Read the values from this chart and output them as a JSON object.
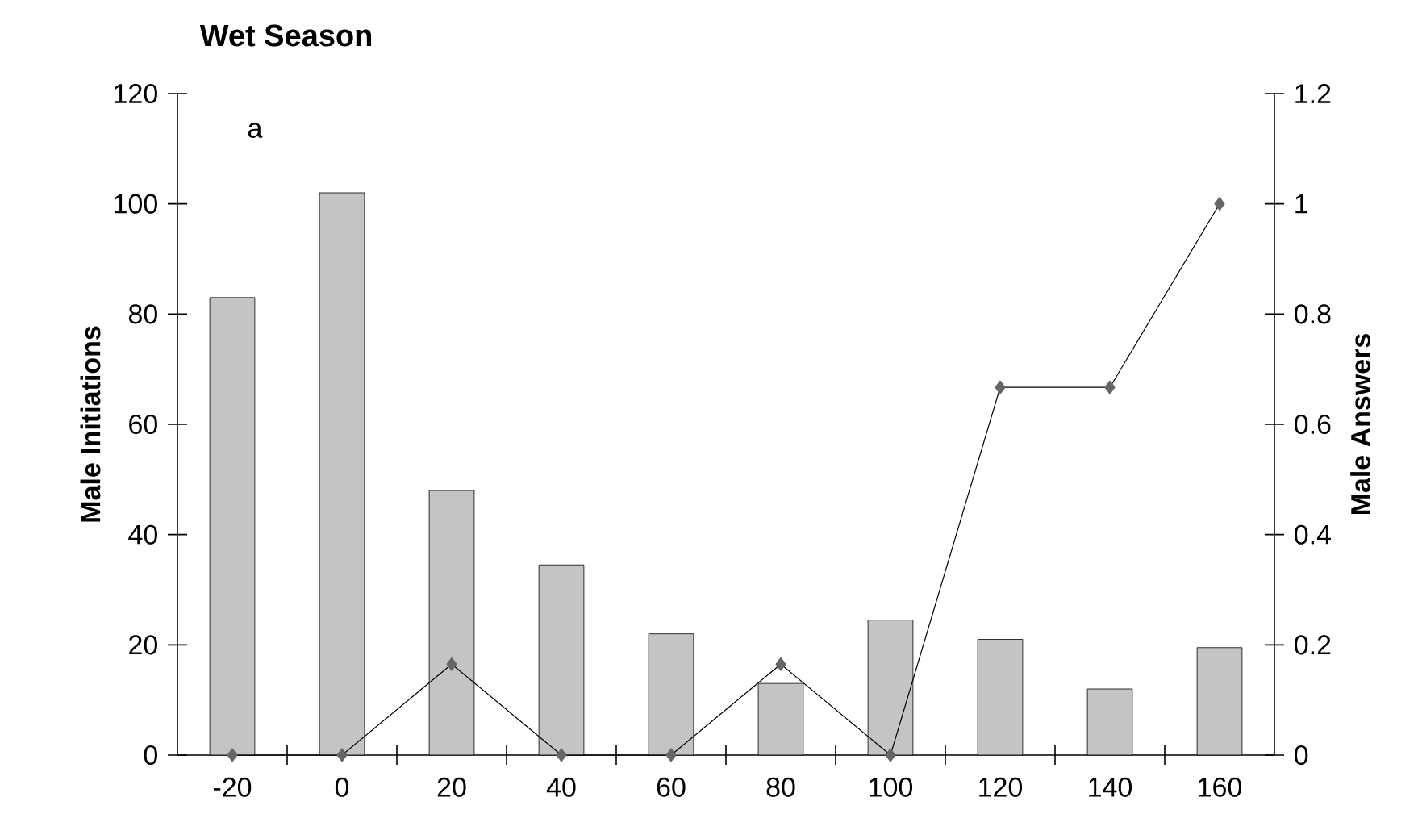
{
  "chart_data": {
    "type": "bar",
    "title": "Wet Season",
    "ylabel": "Male Initiations",
    "y2label": "Male Answers",
    "categories": [
      "-20",
      "0",
      "20",
      "40",
      "60",
      "80",
      "100",
      "120",
      "140",
      "160"
    ],
    "series": [
      {
        "color": "#c4c4c4",
        "values": [
          83,
          102,
          48,
          34.5,
          22,
          13,
          24.5,
          21,
          12,
          19.5
        ]
      },
      {
        "type": "line",
        "axis": "y2",
        "color": "#000000",
        "values": [
          0,
          0,
          0.165,
          0,
          0,
          0.165,
          0,
          0.667,
          0.667,
          1
        ]
      }
    ],
    "ylim": [
      0,
      120
    ],
    "yticks": [
      0,
      20,
      40,
      60,
      80,
      100,
      120
    ],
    "y2lim": [
      0,
      1.2
    ],
    "y2ticks": [
      0,
      0.2,
      0.4,
      0.6,
      0.8,
      1,
      1.2
    ],
    "marker": "diamond",
    "line_style": "solid",
    "grid": false,
    "annotations": [
      "a"
    ]
  }
}
